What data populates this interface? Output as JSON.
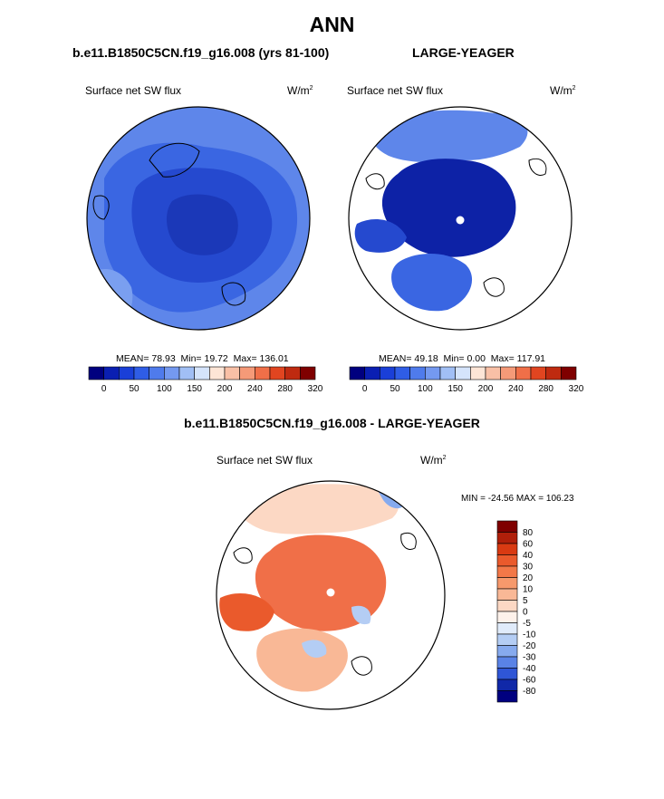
{
  "header": {
    "main_title": "ANN",
    "panel1_title": "b.e11.B1850C5CN.f19_g16.008 (yrs 81-100)",
    "panel2_title": "LARGE-YEAGER",
    "diff_title": "b.e11.B1850C5CN.f19_g16.008 - LARGE-YEAGER"
  },
  "chart_data": [
    {
      "type": "heatmap",
      "title": "b.e11.B1850C5CN.f19_g16.008 (yrs 81-100)",
      "variable": "Surface net SW flux",
      "units": "W/m",
      "units_sup": "2",
      "stats": {
        "mean": "78.93",
        "min": "19.72",
        "max": "136.01"
      },
      "stats_labels": {
        "mean": "MEAN=",
        "min": "Min=",
        "max": "Max="
      },
      "colorbar_levels": [
        "0",
        "50",
        "100",
        "150",
        "200",
        "240",
        "280",
        "320"
      ],
      "colorbar_colors": [
        "#00007f",
        "#0a1fb2",
        "#1a3fd8",
        "#2f5de6",
        "#4f7bec",
        "#7499f0",
        "#a1bff5",
        "#d5e4fb",
        "#fde5d6",
        "#f9c0a6",
        "#f59a78",
        "#f06f48",
        "#e14520",
        "#bf2a10",
        "#7f0000"
      ],
      "polar_region": "Arctic (north-polar stereographic)",
      "missing_data": false
    },
    {
      "type": "heatmap",
      "title": "LARGE-YEAGER",
      "variable": "Surface net SW flux",
      "units": "W/m",
      "units_sup": "2",
      "stats": {
        "mean": "49.18",
        "min": "0.00",
        "max": "117.91"
      },
      "stats_labels": {
        "mean": "MEAN=",
        "min": "Min=",
        "max": "Max="
      },
      "colorbar_levels": [
        "0",
        "50",
        "100",
        "150",
        "200",
        "240",
        "280",
        "320"
      ],
      "colorbar_colors": [
        "#00007f",
        "#0a1fb2",
        "#1a3fd8",
        "#2f5de6",
        "#4f7bec",
        "#7499f0",
        "#a1bff5",
        "#d5e4fb",
        "#fde5d6",
        "#f9c0a6",
        "#f59a78",
        "#f06f48",
        "#e14520",
        "#bf2a10",
        "#7f0000"
      ],
      "polar_region": "Arctic (north-polar stereographic)",
      "missing_data": true
    },
    {
      "type": "heatmap",
      "title": "b.e11.B1850C5CN.f19_g16.008 - LARGE-YEAGER",
      "variable": "Surface net SW flux",
      "units": "W/m",
      "units_sup": "2",
      "range_text": "MIN = -24.56 MAX = 106.23",
      "stats": {
        "min": "-24.56",
        "max": "106.23"
      },
      "colorbar_levels": [
        "80",
        "60",
        "40",
        "30",
        "20",
        "10",
        "5",
        "0",
        "-5",
        "-10",
        "-20",
        "-30",
        "-40",
        "-60",
        "-80"
      ],
      "colorbar_colors": [
        "#7f0000",
        "#b01f0a",
        "#d93a12",
        "#ea5a2c",
        "#f27848",
        "#f6996c",
        "#f9b896",
        "#fcd8c4",
        "#fdf1ea",
        "#e0ebfa",
        "#b4cdf4",
        "#86aaee",
        "#5a83e6",
        "#2f56d6",
        "#1028a8",
        "#00007f"
      ],
      "polar_region": "Arctic (north-polar stereographic)"
    }
  ]
}
